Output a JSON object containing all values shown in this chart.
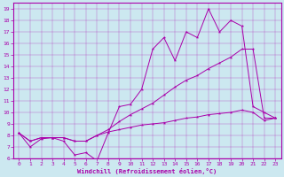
{
  "xlabel": "Windchill (Refroidissement éolien,°C)",
  "bg_color": "#cce8f0",
  "line_color": "#aa00aa",
  "xlim": [
    -0.5,
    23.5
  ],
  "ylim": [
    6,
    19.5
  ],
  "xticks": [
    0,
    1,
    2,
    3,
    4,
    5,
    6,
    7,
    8,
    9,
    10,
    11,
    12,
    13,
    14,
    15,
    16,
    17,
    18,
    19,
    20,
    21,
    22,
    23
  ],
  "yticks": [
    6,
    7,
    8,
    9,
    10,
    11,
    12,
    13,
    14,
    15,
    16,
    17,
    18,
    19
  ],
  "series": [
    {
      "x": [
        0,
        1,
        2,
        3,
        4,
        5,
        6,
        7,
        8,
        9,
        10,
        11,
        12,
        13,
        14,
        15,
        16,
        17,
        18,
        19,
        20,
        21,
        22,
        23
      ],
      "y": [
        8.2,
        7.0,
        7.7,
        7.8,
        7.5,
        6.3,
        6.5,
        5.8,
        8.2,
        10.5,
        10.7,
        12.0,
        15.5,
        16.5,
        14.5,
        17.0,
        16.5,
        19.0,
        17.0,
        18.0,
        17.5,
        10.5,
        10.0,
        9.5
      ]
    },
    {
      "x": [
        0,
        1,
        2,
        3,
        4,
        5,
        6,
        7,
        8,
        9,
        10,
        11,
        12,
        13,
        14,
        15,
        16,
        17,
        18,
        19,
        20,
        21,
        22,
        23
      ],
      "y": [
        8.2,
        7.5,
        7.8,
        7.8,
        7.8,
        7.5,
        7.5,
        8.0,
        8.5,
        9.2,
        9.8,
        10.3,
        10.8,
        11.5,
        12.2,
        12.8,
        13.2,
        13.8,
        14.3,
        14.8,
        15.5,
        15.5,
        9.5,
        9.5
      ]
    },
    {
      "x": [
        0,
        1,
        2,
        3,
        4,
        5,
        6,
        7,
        8,
        9,
        10,
        11,
        12,
        13,
        14,
        15,
        16,
        17,
        18,
        19,
        20,
        21,
        22,
        23
      ],
      "y": [
        8.2,
        7.5,
        7.8,
        7.8,
        7.8,
        7.5,
        7.5,
        8.0,
        8.3,
        8.5,
        8.7,
        8.9,
        9.0,
        9.1,
        9.3,
        9.5,
        9.6,
        9.8,
        9.9,
        10.0,
        10.2,
        10.0,
        9.3,
        9.5
      ]
    }
  ]
}
